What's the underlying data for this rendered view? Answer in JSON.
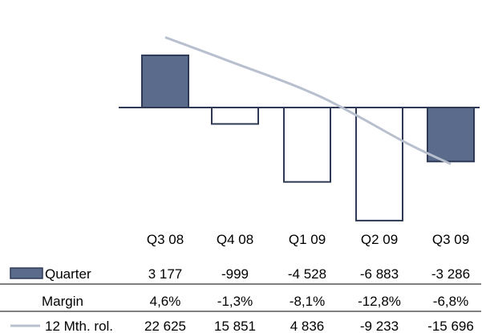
{
  "colors": {
    "quarter_fill": "#5b6b8c",
    "quarter_stroke": "#2e3a55",
    "line": "#b8bfce",
    "axis": "#2e3a55",
    "text": "#000000",
    "divider": "#000000"
  },
  "chart_data": {
    "type": "bar",
    "categories": [
      "Q3 08",
      "Q4 08",
      "Q1 09",
      "Q2 09",
      "Q3 09"
    ],
    "series": [
      {
        "name": "Quarter",
        "kind": "bar",
        "values": [
          3177,
          -999,
          -4528,
          -6883,
          -3286
        ],
        "labels": [
          "3 177",
          "-999",
          "-4 528",
          "-6 883",
          "-3 286"
        ],
        "filled": [
          true,
          false,
          false,
          false,
          true
        ]
      },
      {
        "name": "Margin",
        "kind": "table-row",
        "values": [
          4.6,
          -1.3,
          -8.1,
          -12.8,
          -6.8
        ],
        "labels": [
          "4,6%",
          "-1,3%",
          "-8,1%",
          "-12,8%",
          "-6,8%"
        ]
      },
      {
        "name": "12 Mth. rol.",
        "kind": "line",
        "values": [
          22625,
          15851,
          4836,
          -9233,
          -15696
        ],
        "labels": [
          "22 625",
          "15 851",
          "4 836",
          "-9 233",
          "-15 696"
        ]
      }
    ],
    "axes": {
      "bar_ylim": [
        -7300,
        3300
      ],
      "line_ylim": [
        -19000,
        31000
      ]
    },
    "grid": false,
    "legend": "table-bottom-left"
  }
}
